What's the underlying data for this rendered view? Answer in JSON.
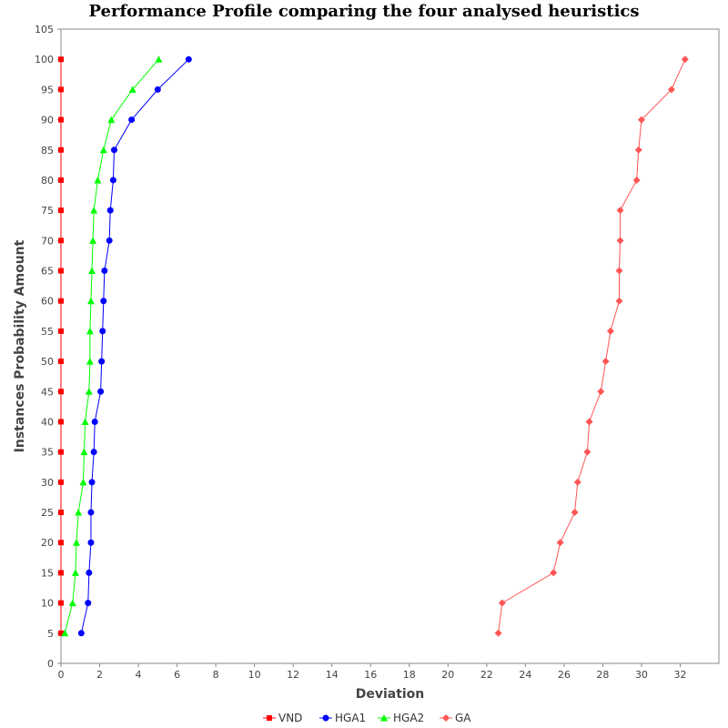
{
  "chart_data": {
    "type": "line",
    "title": "Performance Profile comparing the four analysed heuristics",
    "xlabel": "Deviation",
    "ylabel": "Instances Probability Amount",
    "xlim": [
      0,
      34
    ],
    "ylim": [
      0,
      105
    ],
    "x_ticks": [
      0,
      2,
      4,
      6,
      8,
      10,
      12,
      14,
      16,
      18,
      20,
      22,
      24,
      26,
      28,
      30,
      32
    ],
    "y_ticks": [
      0,
      5,
      10,
      15,
      20,
      25,
      30,
      35,
      40,
      45,
      50,
      55,
      60,
      65,
      70,
      75,
      80,
      85,
      90,
      95,
      100,
      105
    ],
    "grid": false,
    "legend_position": "bottom-center",
    "series": [
      {
        "name": "VND",
        "color": "#ff0000",
        "marker": "square",
        "points": [
          [
            0,
            5
          ],
          [
            0,
            10
          ],
          [
            0,
            15
          ],
          [
            0,
            20
          ],
          [
            0,
            25
          ],
          [
            0,
            30
          ],
          [
            0,
            35
          ],
          [
            0,
            40
          ],
          [
            0,
            45
          ],
          [
            0,
            50
          ],
          [
            0,
            55
          ],
          [
            0,
            60
          ],
          [
            0,
            65
          ],
          [
            0,
            70
          ],
          [
            0,
            75
          ],
          [
            0,
            80
          ],
          [
            0,
            85
          ],
          [
            0,
            90
          ],
          [
            0,
            95
          ],
          [
            0,
            100
          ]
        ]
      },
      {
        "name": "HGA1",
        "color": "#0000ff",
        "marker": "circle",
        "points": [
          [
            1.05,
            5
          ],
          [
            1.4,
            10
          ],
          [
            1.45,
            15
          ],
          [
            1.55,
            20
          ],
          [
            1.55,
            25
          ],
          [
            1.6,
            30
          ],
          [
            1.7,
            35
          ],
          [
            1.75,
            40
          ],
          [
            2.05,
            45
          ],
          [
            2.1,
            50
          ],
          [
            2.15,
            55
          ],
          [
            2.2,
            60
          ],
          [
            2.25,
            65
          ],
          [
            2.5,
            70
          ],
          [
            2.55,
            75
          ],
          [
            2.7,
            80
          ],
          [
            2.75,
            85
          ],
          [
            3.65,
            90
          ],
          [
            5.0,
            95
          ],
          [
            6.6,
            100
          ]
        ]
      },
      {
        "name": "HGA2",
        "color": "#00ff00",
        "marker": "triangle",
        "points": [
          [
            0.2,
            5
          ],
          [
            0.6,
            10
          ],
          [
            0.75,
            15
          ],
          [
            0.8,
            20
          ],
          [
            0.9,
            25
          ],
          [
            1.15,
            30
          ],
          [
            1.2,
            35
          ],
          [
            1.25,
            40
          ],
          [
            1.45,
            45
          ],
          [
            1.5,
            50
          ],
          [
            1.5,
            55
          ],
          [
            1.55,
            60
          ],
          [
            1.6,
            65
          ],
          [
            1.65,
            70
          ],
          [
            1.7,
            75
          ],
          [
            1.9,
            80
          ],
          [
            2.2,
            85
          ],
          [
            2.6,
            90
          ],
          [
            3.7,
            95
          ],
          [
            5.05,
            100
          ]
        ]
      },
      {
        "name": "GA",
        "color": "#ff5555",
        "marker": "diamond",
        "points": [
          [
            22.6,
            5
          ],
          [
            22.8,
            10
          ],
          [
            25.45,
            15
          ],
          [
            25.8,
            20
          ],
          [
            26.55,
            25
          ],
          [
            26.7,
            30
          ],
          [
            27.2,
            35
          ],
          [
            27.3,
            40
          ],
          [
            27.9,
            45
          ],
          [
            28.15,
            50
          ],
          [
            28.4,
            55
          ],
          [
            28.85,
            60
          ],
          [
            28.85,
            65
          ],
          [
            28.9,
            70
          ],
          [
            28.9,
            75
          ],
          [
            29.75,
            80
          ],
          [
            29.85,
            85
          ],
          [
            30.0,
            90
          ],
          [
            31.55,
            95
          ],
          [
            32.25,
            100
          ]
        ]
      }
    ]
  }
}
